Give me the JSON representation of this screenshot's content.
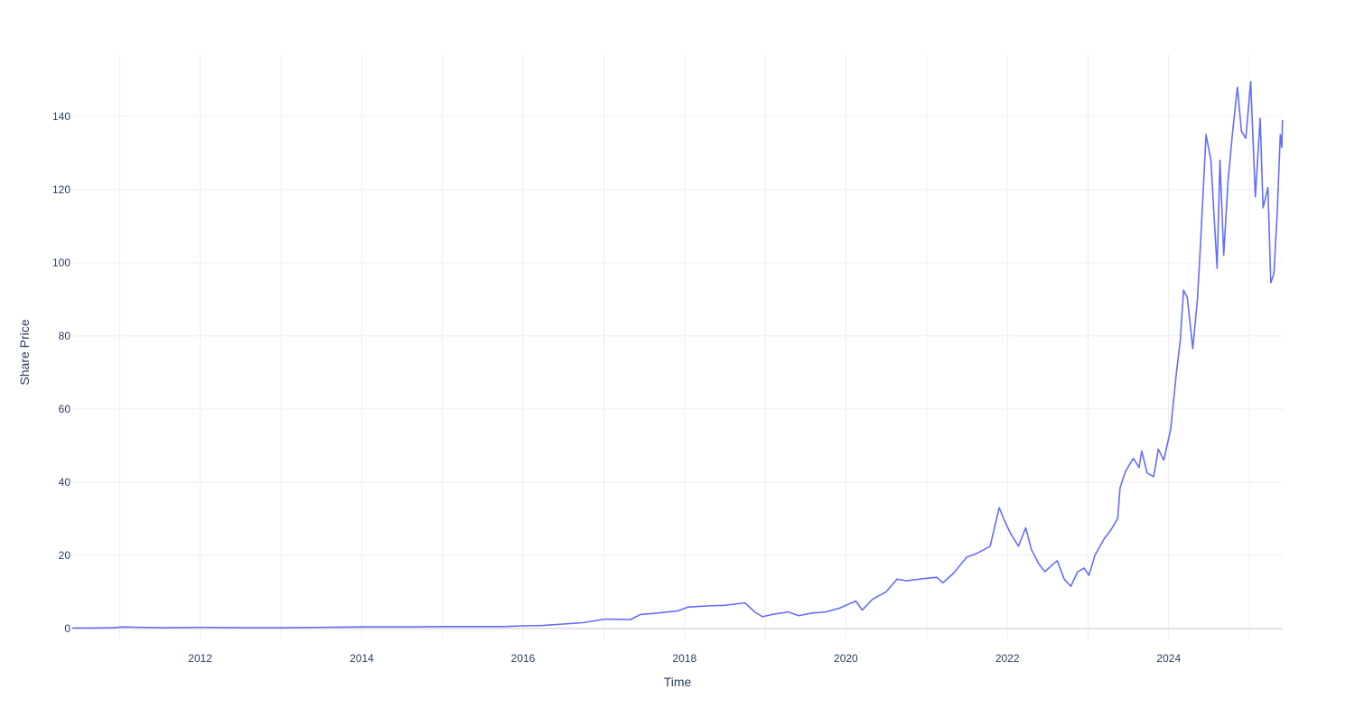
{
  "chart_data": {
    "type": "line",
    "title": "",
    "xlabel": "Time",
    "ylabel": "Share Price",
    "grid": true,
    "legend": "none",
    "xlim": [
      "2010-06-01",
      "2025-05-31"
    ],
    "ylim": [
      -3,
      157
    ],
    "x_ticks": [
      "2012",
      "2014",
      "2016",
      "2018",
      "2020",
      "2022",
      "2024"
    ],
    "y_ticks": [
      0,
      20,
      40,
      60,
      80,
      100,
      120,
      140
    ],
    "colors": {
      "line": "#636efa",
      "grid": "#eeeeee",
      "zeroline": "#e3e3e3",
      "text": "#2a3f5f"
    },
    "series": [
      {
        "values": [
          [
            "2010-06-01",
            0.1
          ],
          [
            "2010-09-01",
            0.1
          ],
          [
            "2010-12-01",
            0.2
          ],
          [
            "2011-01-15",
            0.4
          ],
          [
            "2011-04-01",
            0.3
          ],
          [
            "2011-08-01",
            0.2
          ],
          [
            "2012-01-01",
            0.3
          ],
          [
            "2012-07-01",
            0.2
          ],
          [
            "2013-01-01",
            0.2
          ],
          [
            "2013-07-01",
            0.3
          ],
          [
            "2014-01-01",
            0.4
          ],
          [
            "2014-07-01",
            0.4
          ],
          [
            "2015-01-01",
            0.5
          ],
          [
            "2015-06-01",
            0.5
          ],
          [
            "2015-10-01",
            0.5
          ],
          [
            "2016-01-01",
            0.7
          ],
          [
            "2016-04-01",
            0.8
          ],
          [
            "2016-07-01",
            1.2
          ],
          [
            "2016-10-01",
            1.6
          ],
          [
            "2017-01-01",
            2.5
          ],
          [
            "2017-03-01",
            2.5
          ],
          [
            "2017-05-01",
            2.4
          ],
          [
            "2017-06-15",
            3.8
          ],
          [
            "2017-09-01",
            4.2
          ],
          [
            "2017-12-01",
            4.8
          ],
          [
            "2018-01-15",
            5.8
          ],
          [
            "2018-03-01",
            6.0
          ],
          [
            "2018-05-01",
            6.2
          ],
          [
            "2018-07-01",
            6.3
          ],
          [
            "2018-10-01",
            7.0
          ],
          [
            "2018-11-15",
            4.5
          ],
          [
            "2018-12-20",
            3.2
          ],
          [
            "2019-02-01",
            3.8
          ],
          [
            "2019-04-15",
            4.5
          ],
          [
            "2019-06-01",
            3.5
          ],
          [
            "2019-08-01",
            4.2
          ],
          [
            "2019-10-01",
            4.5
          ],
          [
            "2019-12-01",
            5.5
          ],
          [
            "2020-02-15",
            7.5
          ],
          [
            "2020-03-15",
            5.0
          ],
          [
            "2020-05-01",
            8.0
          ],
          [
            "2020-07-01",
            10.0
          ],
          [
            "2020-08-20",
            13.5
          ],
          [
            "2020-10-01",
            13.0
          ],
          [
            "2020-12-01",
            13.5
          ],
          [
            "2021-02-15",
            14.0
          ],
          [
            "2021-03-15",
            12.5
          ],
          [
            "2021-05-01",
            15.0
          ],
          [
            "2021-07-01",
            19.5
          ],
          [
            "2021-08-15",
            20.5
          ],
          [
            "2021-09-15",
            21.5
          ],
          [
            "2021-10-15",
            22.5
          ],
          [
            "2021-11-25",
            33.0
          ],
          [
            "2021-12-15",
            30.0
          ],
          [
            "2022-01-15",
            26.0
          ],
          [
            "2022-02-20",
            22.5
          ],
          [
            "2022-03-25",
            27.5
          ],
          [
            "2022-04-20",
            21.5
          ],
          [
            "2022-05-25",
            17.5
          ],
          [
            "2022-06-20",
            15.5
          ],
          [
            "2022-07-25",
            17.5
          ],
          [
            "2022-08-15",
            18.5
          ],
          [
            "2022-09-15",
            13.5
          ],
          [
            "2022-10-15",
            11.5
          ],
          [
            "2022-11-15",
            15.5
          ],
          [
            "2022-12-15",
            16.5
          ],
          [
            "2023-01-05",
            14.5
          ],
          [
            "2023-02-01",
            20.0
          ],
          [
            "2023-03-15",
            24.5
          ],
          [
            "2023-04-15",
            27.0
          ],
          [
            "2023-05-15",
            30.0
          ],
          [
            "2023-05-26",
            38.5
          ],
          [
            "2023-06-20",
            43.0
          ],
          [
            "2023-07-25",
            46.5
          ],
          [
            "2023-08-20",
            44.0
          ],
          [
            "2023-09-01",
            48.5
          ],
          [
            "2023-09-25",
            42.5
          ],
          [
            "2023-10-25",
            41.5
          ],
          [
            "2023-11-15",
            49.0
          ],
          [
            "2023-12-10",
            46.0
          ],
          [
            "2024-01-10",
            54.5
          ],
          [
            "2024-02-05",
            70.0
          ],
          [
            "2024-02-22",
            78.5
          ],
          [
            "2024-03-08",
            92.5
          ],
          [
            "2024-03-25",
            90.5
          ],
          [
            "2024-04-19",
            76.5
          ],
          [
            "2024-05-10",
            90.0
          ],
          [
            "2024-05-23",
            104.0
          ],
          [
            "2024-06-18",
            135.0
          ],
          [
            "2024-07-10",
            128.0
          ],
          [
            "2024-07-25",
            112.0
          ],
          [
            "2024-08-07",
            98.5
          ],
          [
            "2024-08-20",
            128.0
          ],
          [
            "2024-09-06",
            102.0
          ],
          [
            "2024-09-25",
            122.0
          ],
          [
            "2024-10-15",
            135.0
          ],
          [
            "2024-11-07",
            148.0
          ],
          [
            "2024-11-25",
            136.0
          ],
          [
            "2024-12-15",
            134.0
          ],
          [
            "2025-01-06",
            149.5
          ],
          [
            "2025-01-27",
            118.0
          ],
          [
            "2025-02-18",
            139.5
          ],
          [
            "2025-03-03",
            115.0
          ],
          [
            "2025-03-25",
            120.5
          ],
          [
            "2025-04-07",
            94.5
          ],
          [
            "2025-04-21",
            97.0
          ],
          [
            "2025-05-06",
            113.5
          ],
          [
            "2025-05-20",
            135.0
          ],
          [
            "2025-05-27",
            131.5
          ],
          [
            "2025-05-30",
            139.0
          ]
        ]
      }
    ]
  }
}
